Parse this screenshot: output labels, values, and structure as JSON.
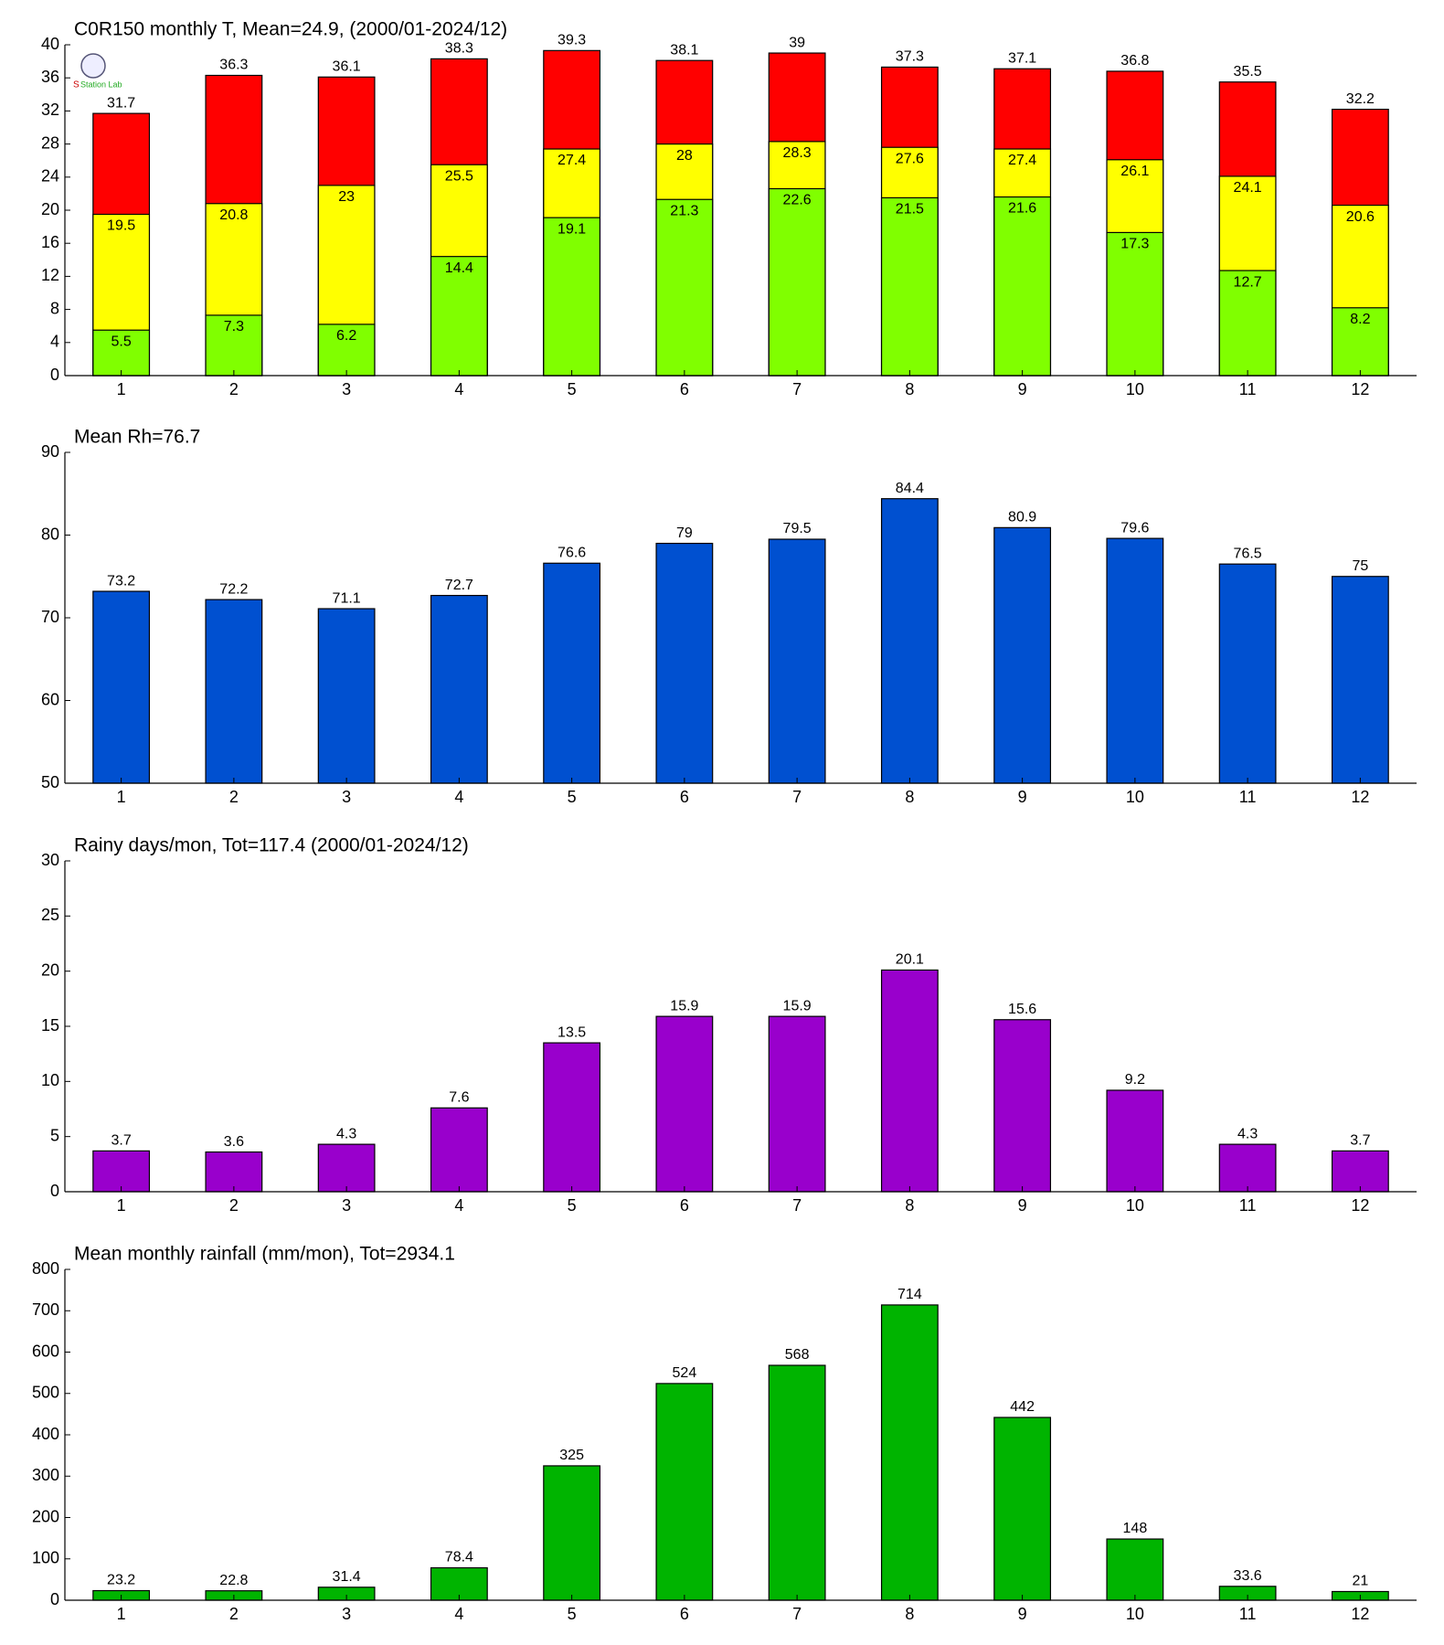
{
  "chart_data": [
    {
      "type": "bar",
      "title": "C0R150 monthly T, Mean=24.9, (2000/01-2024/12)",
      "categories": [
        "1",
        "2",
        "3",
        "4",
        "5",
        "6",
        "7",
        "8",
        "9",
        "10",
        "11",
        "12"
      ],
      "series": [
        {
          "color": "#ff0000",
          "values": [
            31.7,
            36.3,
            36.1,
            38.3,
            39.3,
            38.1,
            39,
            37.3,
            37.1,
            36.8,
            35.5,
            32.2
          ]
        },
        {
          "color": "#ffff00",
          "values": [
            19.5,
            20.8,
            23,
            25.5,
            27.4,
            28,
            28.3,
            27.6,
            27.4,
            26.1,
            24.1,
            20.6
          ]
        },
        {
          "color": "#80ff00",
          "values": [
            5.5,
            7.3,
            6.2,
            14.4,
            19.1,
            21.3,
            22.6,
            21.5,
            21.6,
            17.3,
            12.7,
            8.2
          ]
        }
      ],
      "ylim": [
        0,
        40
      ],
      "yticks": [
        0,
        4,
        8,
        12,
        16,
        20,
        24,
        28,
        32,
        36,
        40
      ]
    },
    {
      "type": "bar",
      "title": "Mean Rh=76.7",
      "categories": [
        "1",
        "2",
        "3",
        "4",
        "5",
        "6",
        "7",
        "8",
        "9",
        "10",
        "11",
        "12"
      ],
      "series": [
        {
          "color": "#0050d0",
          "values": [
            73.2,
            72.2,
            71.1,
            72.7,
            76.6,
            79,
            79.5,
            84.4,
            80.9,
            79.6,
            76.5,
            75
          ]
        }
      ],
      "ylim": [
        50,
        90
      ],
      "yticks": [
        50,
        60,
        70,
        80,
        90
      ]
    },
    {
      "type": "bar",
      "title": "Rainy days/mon, Tot=117.4 (2000/01-2024/12)",
      "categories": [
        "1",
        "2",
        "3",
        "4",
        "5",
        "6",
        "7",
        "8",
        "9",
        "10",
        "11",
        "12"
      ],
      "series": [
        {
          "color": "#9900cc",
          "values": [
            3.7,
            3.6,
            4.3,
            7.6,
            13.5,
            15.9,
            15.9,
            20.1,
            15.6,
            9.2,
            4.3,
            3.7
          ]
        }
      ],
      "ylim": [
        0,
        30
      ],
      "yticks": [
        0,
        5,
        10,
        15,
        20,
        25,
        30
      ]
    },
    {
      "type": "bar",
      "title": "Mean monthly rainfall (mm/mon), Tot=2934.1",
      "categories": [
        "1",
        "2",
        "3",
        "4",
        "5",
        "6",
        "7",
        "8",
        "9",
        "10",
        "11",
        "12"
      ],
      "series": [
        {
          "color": "#00b400",
          "values": [
            23.2,
            22.8,
            31.4,
            78.4,
            325,
            524,
            568,
            714,
            442,
            148,
            33.6,
            21
          ]
        }
      ],
      "ylim": [
        0,
        800
      ],
      "yticks": [
        0,
        100,
        200,
        300,
        400,
        500,
        600,
        700,
        800
      ]
    }
  ]
}
